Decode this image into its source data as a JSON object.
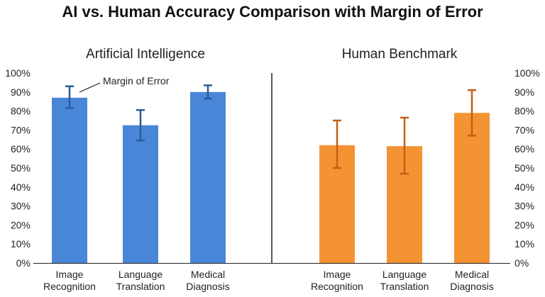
{
  "chart_data": {
    "type": "bar",
    "title": "AI vs. Human Accuracy Comparison with Margin of Error",
    "ylim": [
      0,
      100
    ],
    "y_ticks": [
      "0%",
      "10%",
      "20%",
      "30%",
      "40%",
      "50%",
      "60%",
      "70%",
      "80%",
      "90%",
      "100%"
    ],
    "categories": [
      [
        "Image",
        "Recognition"
      ],
      [
        "Language",
        "Translation"
      ],
      [
        "Medical",
        "Diagnosis"
      ]
    ],
    "annotation": "Margin of Error",
    "series": [
      {
        "name": "Artificial Intelligence",
        "color": "#4a86d8",
        "error_color": "#2c5c9a",
        "values": [
          87,
          72.5,
          90
        ],
        "error_low": [
          81.5,
          64.5,
          86.5
        ],
        "error_high": [
          93,
          80.5,
          93.5
        ]
      },
      {
        "name": "Human Benchmark",
        "color": "#f49334",
        "error_color": "#c45f12",
        "values": [
          62,
          61.5,
          79
        ],
        "error_low": [
          50,
          47,
          67
        ],
        "error_high": [
          75,
          76.5,
          91
        ]
      }
    ]
  }
}
